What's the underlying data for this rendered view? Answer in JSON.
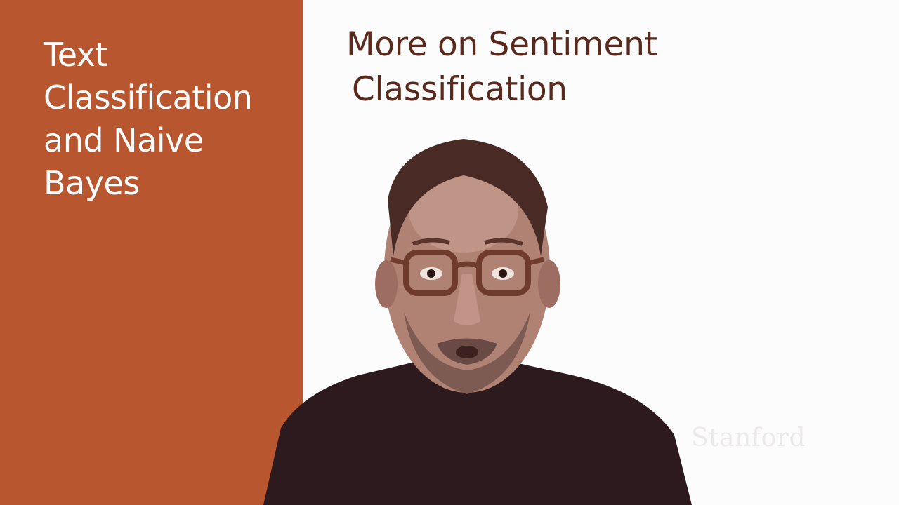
{
  "slide": {
    "section_title_lines": [
      "Text",
      "Classification",
      "and Naive",
      "Bayes"
    ],
    "title_lines": [
      "More on Sentiment",
      "Classification"
    ],
    "watermark": "Stanford"
  },
  "colors": {
    "panel": "#b85630",
    "title_text": "#5a2a1c",
    "background": "#fdfcfd"
  },
  "presenter": {
    "icon": "presenter-video-icon"
  }
}
